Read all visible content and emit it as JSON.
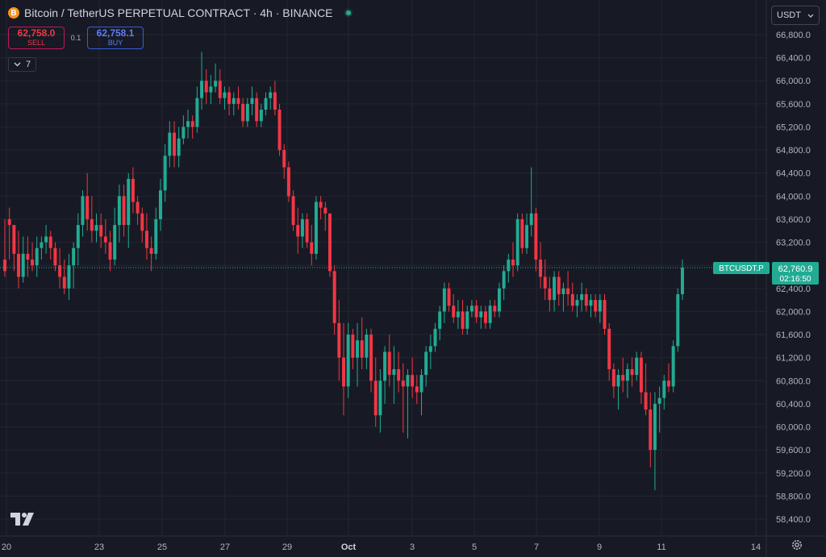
{
  "header": {
    "coin_glyph": "B",
    "title": "Bitcoin / TetherUS PERPETUAL CONTRACT · 4h · BINANCE"
  },
  "trade": {
    "sell_price": "62,758.0",
    "sell_label": "SELL",
    "spread": "0.1",
    "buy_price": "62,758.1",
    "buy_label": "BUY"
  },
  "indicators": {
    "count": "7",
    "toggle_icon": "chevron-down-icon"
  },
  "currency": {
    "value": "USDT",
    "icon": "chevron-down-icon"
  },
  "price_label": {
    "symbol": "BTCUSDT.P",
    "price": "62,760.9",
    "countdown": "02:16:50"
  },
  "colors": {
    "background": "#171a24",
    "grid": "#232632",
    "up": "#22ab94",
    "down": "#f23645",
    "text": "#d1d4dc"
  },
  "chart_data": {
    "type": "candlestick",
    "interval": "4h",
    "y_ticks": [
      "66,800.0",
      "66,400.0",
      "66,000.0",
      "65,600.0",
      "65,200.0",
      "64,800.0",
      "64,400.0",
      "64,000.0",
      "63,600.0",
      "63,200.0",
      "62,800.0",
      "62,400.0",
      "62,000.0",
      "61,600.0",
      "61,200.0",
      "60,800.0",
      "60,400.0",
      "60,000.0",
      "59,600.0",
      "59,200.0",
      "58,800.0",
      "58,400.0"
    ],
    "x_ticks": [
      "20",
      "23",
      "25",
      "27",
      "29",
      "Oct",
      "3",
      "5",
      "7",
      "9",
      "11",
      "14"
    ],
    "ylim": [
      58200,
      67000
    ],
    "last_price": 62760.9,
    "candles": [
      [
        62900,
        63600,
        62600,
        62700
      ],
      [
        63600,
        63800,
        62900,
        63500
      ],
      [
        63500,
        63500,
        62700,
        63000
      ],
      [
        63000,
        63400,
        62400,
        62600
      ],
      [
        62600,
        63300,
        62500,
        63000
      ],
      [
        63000,
        63300,
        62600,
        62900
      ],
      [
        62900,
        63200,
        62700,
        62800
      ],
      [
        62800,
        63300,
        62600,
        63100
      ],
      [
        63100,
        63300,
        62900,
        63200
      ],
      [
        63200,
        63500,
        63000,
        63300
      ],
      [
        63300,
        63400,
        62900,
        63100
      ],
      [
        63100,
        63200,
        62700,
        62800
      ],
      [
        62800,
        63100,
        62400,
        62600
      ],
      [
        62600,
        62900,
        62300,
        62400
      ],
      [
        62400,
        63000,
        62200,
        62800
      ],
      [
        62800,
        63200,
        62400,
        63100
      ],
      [
        63100,
        63700,
        62800,
        63500
      ],
      [
        63500,
        64100,
        63300,
        64000
      ],
      [
        64000,
        64400,
        63400,
        63600
      ],
      [
        63600,
        64000,
        63200,
        63400
      ],
      [
        63400,
        63700,
        63200,
        63500
      ],
      [
        63500,
        63700,
        63100,
        63300
      ],
      [
        63300,
        63600,
        63000,
        63200
      ],
      [
        63200,
        63400,
        62700,
        62900
      ],
      [
        62900,
        63800,
        62800,
        63500
      ],
      [
        63500,
        64200,
        63200,
        64000
      ],
      [
        64000,
        64200,
        63300,
        63500
      ],
      [
        63500,
        64400,
        63100,
        64300
      ],
      [
        64300,
        64500,
        63700,
        63900
      ],
      [
        63900,
        64000,
        63500,
        63700
      ],
      [
        63700,
        63800,
        63200,
        63400
      ],
      [
        63400,
        63700,
        62900,
        63100
      ],
      [
        63100,
        63300,
        62700,
        63000
      ],
      [
        63000,
        63800,
        62900,
        63600
      ],
      [
        63600,
        64300,
        63400,
        64100
      ],
      [
        64100,
        64900,
        63900,
        64700
      ],
      [
        64700,
        65300,
        64500,
        65100
      ],
      [
        65100,
        65300,
        64500,
        64700
      ],
      [
        64700,
        65200,
        64500,
        65000
      ],
      [
        65000,
        65400,
        64900,
        65200
      ],
      [
        65200,
        65500,
        65000,
        65300
      ],
      [
        65300,
        65400,
        65000,
        65200
      ],
      [
        65200,
        65900,
        65100,
        65700
      ],
      [
        65700,
        66500,
        65500,
        66000
      ],
      [
        66000,
        66200,
        65600,
        65800
      ],
      [
        65800,
        66100,
        65600,
        65900
      ],
      [
        65900,
        66300,
        65800,
        66000
      ],
      [
        66000,
        66200,
        65600,
        65700
      ],
      [
        65700,
        65900,
        65500,
        65800
      ],
      [
        65800,
        65900,
        65400,
        65600
      ],
      [
        65600,
        65800,
        65400,
        65700
      ],
      [
        65700,
        65900,
        65500,
        65600
      ],
      [
        65600,
        65700,
        65200,
        65300
      ],
      [
        65300,
        65700,
        65200,
        65600
      ],
      [
        65600,
        65900,
        65400,
        65700
      ],
      [
        65700,
        65800,
        65200,
        65300
      ],
      [
        65300,
        65600,
        65200,
        65500
      ],
      [
        65500,
        65800,
        65400,
        65700
      ],
      [
        65700,
        65900,
        65500,
        65800
      ],
      [
        65800,
        66000,
        65400,
        65500
      ],
      [
        65500,
        65600,
        64700,
        64800
      ],
      [
        64800,
        64900,
        64300,
        64500
      ],
      [
        64500,
        64600,
        63900,
        64000
      ],
      [
        64000,
        64100,
        63400,
        63500
      ],
      [
        63500,
        63800,
        63000,
        63300
      ],
      [
        63300,
        63700,
        63100,
        63600
      ],
      [
        63600,
        63700,
        63100,
        63200
      ],
      [
        63200,
        63500,
        62800,
        63000
      ],
      [
        63000,
        64000,
        62900,
        63900
      ],
      [
        63900,
        64000,
        63600,
        63800
      ],
      [
        63800,
        63900,
        63400,
        63700
      ],
      [
        63700,
        63700,
        62600,
        62700
      ],
      [
        62700,
        62800,
        61600,
        61800
      ],
      [
        61800,
        62200,
        60800,
        61200
      ],
      [
        61200,
        61800,
        60200,
        60700
      ],
      [
        60700,
        61800,
        60500,
        61600
      ],
      [
        61600,
        61700,
        61000,
        61200
      ],
      [
        61200,
        61800,
        60700,
        61500
      ],
      [
        61500,
        61900,
        61000,
        61200
      ],
      [
        61200,
        61700,
        61000,
        61600
      ],
      [
        61600,
        61700,
        60600,
        60800
      ],
      [
        60800,
        61200,
        60000,
        60200
      ],
      [
        60200,
        61000,
        59900,
        60800
      ],
      [
        60800,
        61400,
        60400,
        61300
      ],
      [
        61300,
        61600,
        60700,
        60900
      ],
      [
        60900,
        61400,
        60400,
        61000
      ],
      [
        61000,
        61300,
        60600,
        60800
      ],
      [
        60800,
        61100,
        59900,
        60700
      ],
      [
        60700,
        61000,
        59800,
        60900
      ],
      [
        60900,
        61200,
        60500,
        60700
      ],
      [
        60700,
        60900,
        60400,
        60600
      ],
      [
        60600,
        61000,
        60200,
        60900
      ],
      [
        60900,
        61400,
        60700,
        61300
      ],
      [
        61300,
        61600,
        61000,
        61400
      ],
      [
        61400,
        61800,
        61300,
        61700
      ],
      [
        61700,
        62100,
        61500,
        62000
      ],
      [
        62000,
        62500,
        61800,
        62400
      ],
      [
        62400,
        62500,
        62000,
        62100
      ],
      [
        62100,
        62300,
        61800,
        61900
      ],
      [
        61900,
        62200,
        61700,
        62000
      ],
      [
        62000,
        62200,
        61600,
        61700
      ],
      [
        61700,
        62100,
        61600,
        62000
      ],
      [
        62000,
        62200,
        61900,
        62100
      ],
      [
        62100,
        62200,
        61800,
        61900
      ],
      [
        61900,
        62100,
        61700,
        62000
      ],
      [
        62000,
        62100,
        61700,
        61800
      ],
      [
        61800,
        62200,
        61700,
        62100
      ],
      [
        62100,
        62200,
        61900,
        62000
      ],
      [
        62000,
        62500,
        61900,
        62400
      ],
      [
        62400,
        62800,
        62200,
        62700
      ],
      [
        62700,
        63000,
        62500,
        62900
      ],
      [
        62900,
        63200,
        62600,
        62800
      ],
      [
        62800,
        63700,
        62700,
        63600
      ],
      [
        63600,
        63700,
        63000,
        63100
      ],
      [
        63100,
        63700,
        63000,
        63500
      ],
      [
        63500,
        64500,
        63300,
        63700
      ],
      [
        63700,
        63800,
        62700,
        62900
      ],
      [
        62900,
        63200,
        62400,
        62600
      ],
      [
        62600,
        62900,
        62200,
        62400
      ],
      [
        62400,
        62600,
        62000,
        62200
      ],
      [
        62200,
        62700,
        62000,
        62600
      ],
      [
        62600,
        62700,
        62100,
        62300
      ],
      [
        62300,
        62500,
        62000,
        62400
      ],
      [
        62400,
        62700,
        62100,
        62300
      ],
      [
        62300,
        62500,
        62000,
        62100
      ],
      [
        62100,
        62300,
        61900,
        62200
      ],
      [
        62200,
        62500,
        62000,
        62300
      ],
      [
        62300,
        62400,
        62000,
        62100
      ],
      [
        62100,
        62300,
        61900,
        62200
      ],
      [
        62200,
        62300,
        61900,
        62000
      ],
      [
        62000,
        62300,
        61800,
        62200
      ],
      [
        62200,
        62300,
        61600,
        61700
      ],
      [
        61700,
        61800,
        60800,
        61000
      ],
      [
        61000,
        61100,
        60500,
        60700
      ],
      [
        60700,
        61000,
        60300,
        60900
      ],
      [
        60900,
        61200,
        60600,
        60800
      ],
      [
        60800,
        61100,
        60500,
        61000
      ],
      [
        61000,
        61200,
        60700,
        60900
      ],
      [
        60900,
        61300,
        60800,
        61200
      ],
      [
        61200,
        61300,
        60400,
        60600
      ],
      [
        60600,
        61100,
        60200,
        60300
      ],
      [
        60300,
        60600,
        59300,
        59600
      ],
      [
        59600,
        60600,
        58900,
        60400
      ],
      [
        60400,
        60700,
        59900,
        60500
      ],
      [
        60500,
        60900,
        60300,
        60800
      ],
      [
        60800,
        61100,
        60600,
        60700
      ],
      [
        60700,
        61500,
        60600,
        61400
      ],
      [
        61400,
        62400,
        61300,
        62300
      ],
      [
        62300,
        62900,
        62200,
        62761
      ]
    ]
  }
}
